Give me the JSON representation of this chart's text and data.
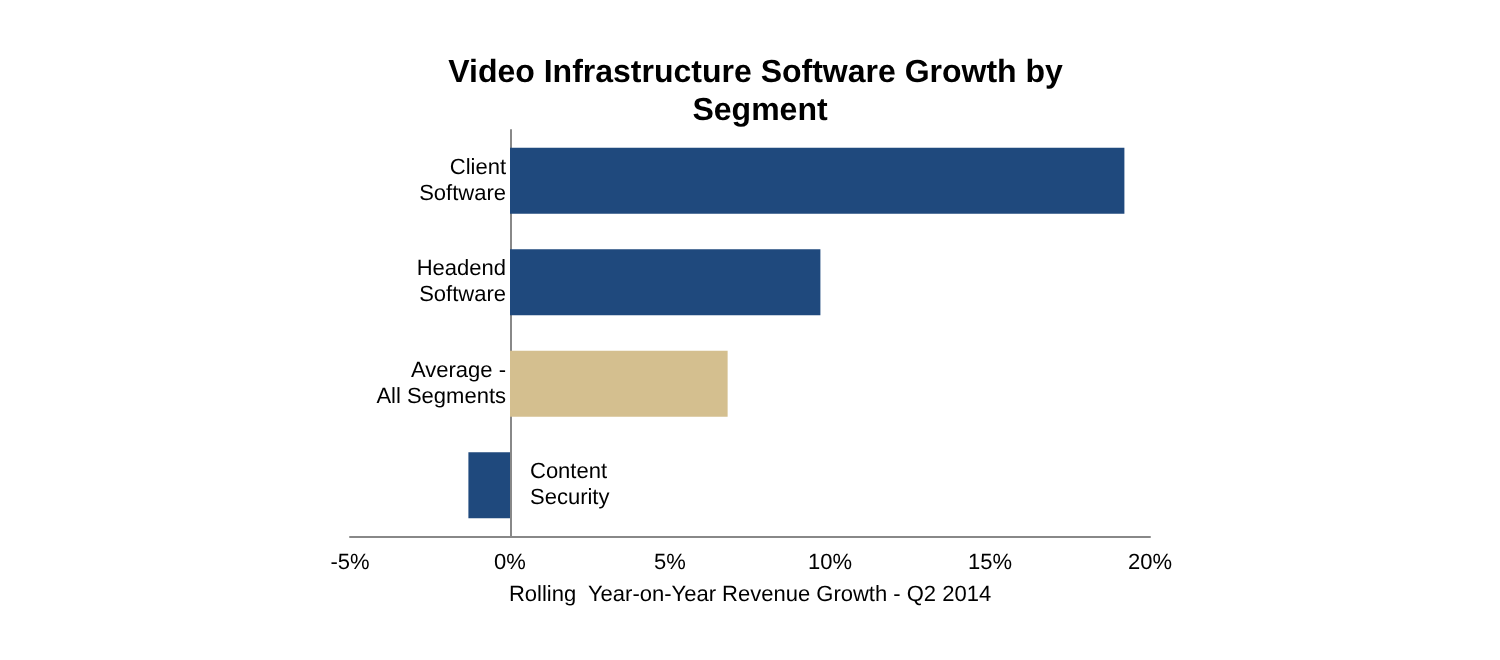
{
  "chart_data": {
    "type": "bar",
    "orientation": "horizontal",
    "title": "Video Infrastructure Software Growth by Segment",
    "xlabel": "Rolling  Year-on-Year Revenue Growth - Q2 2014",
    "categories": [
      "Client Software",
      "Headend Software",
      "Average - All Segments",
      "Content Security"
    ],
    "values": [
      19.2,
      9.7,
      6.8,
      -1.3
    ],
    "colors": [
      "#1f497d",
      "#1f497d",
      "#d4bf8f",
      "#1f497d"
    ],
    "xlim": [
      -5,
      20
    ],
    "xticks": [
      {
        "value": -5,
        "label": "-5%"
      },
      {
        "value": 0,
        "label": "0%"
      },
      {
        "value": 5,
        "label": "5%"
      },
      {
        "value": 10,
        "label": "10%"
      },
      {
        "value": 15,
        "label": "15%"
      },
      {
        "value": 20,
        "label": "20%"
      }
    ],
    "grid": false
  }
}
